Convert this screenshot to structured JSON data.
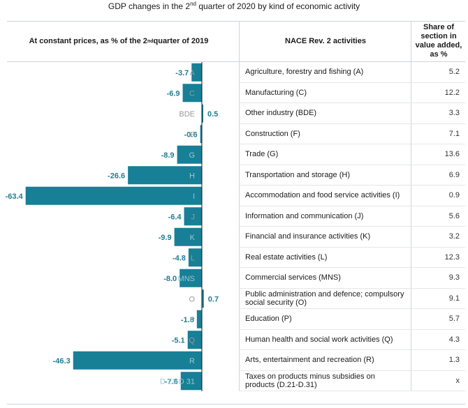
{
  "title": {
    "prefix": "GDP changes in the 2",
    "sup": "nd",
    "suffix": " quarter of 2020 by kind of economic activity"
  },
  "headers": {
    "left_prefix": "At constant prices, as % of the 2",
    "left_sup": "nd",
    "left_suffix": " quarter of 2019",
    "middle": "NACE Rev. 2 activities",
    "right": "Share of section in value added, as %"
  },
  "colors": {
    "bar": "#177f96",
    "value_label": "#1f7d93",
    "code_label_on_bar": "#9bc9d3",
    "code_label_off_bar": "#9a9a9a",
    "axis": "#1a1a1a"
  },
  "chart_data": {
    "type": "bar",
    "orientation": "horizontal",
    "xlim": [
      -63.4,
      12.0
    ],
    "grid": false,
    "legend": "none",
    "categories": [
      "A",
      "C",
      "BDE",
      "F",
      "G",
      "H",
      "I",
      "J",
      "K",
      "L",
      "MNS",
      "O",
      "P",
      "Q",
      "R",
      "D 21-D 31"
    ],
    "values": [
      -3.7,
      -6.9,
      0.5,
      -0.6,
      -8.9,
      -26.6,
      -63.4,
      -6.4,
      -9.9,
      -4.8,
      -8.0,
      0.7,
      -1.8,
      -5.1,
      -46.3,
      -7.6
    ],
    "value_labels": [
      "-3.7",
      "-6.9",
      "0.5",
      "-0.6",
      "-8.9",
      "-26.6",
      "-63.4",
      "-6.4",
      "-9.9",
      "-4.8",
      "-8.0",
      "0.7",
      "-1.8",
      "-5.1",
      "-46.3",
      "-7.6"
    ]
  },
  "rows": [
    {
      "activity": "Agriculture, forestry and fishing (A)",
      "share": "5.2"
    },
    {
      "activity": "Manufacturing (C)",
      "share": "12.2"
    },
    {
      "activity": "Other industry (BDE)",
      "share": "3.3"
    },
    {
      "activity": "Construction (F)",
      "share": "7.1"
    },
    {
      "activity": "Trade (G)",
      "share": "13.6"
    },
    {
      "activity": "Transportation and storage (H)",
      "share": "6.9"
    },
    {
      "activity": "Accommodation and food service activities (I)",
      "share": "0.9"
    },
    {
      "activity": "Information and communication (J)",
      "share": "5.6"
    },
    {
      "activity": "Financial and insurance activities (K)",
      "share": "3.2"
    },
    {
      "activity": "Real estate activities (L)",
      "share": "12.3"
    },
    {
      "activity": "Commercial services (MNS)",
      "share": "9.3"
    },
    {
      "activity": "Public administration and defence; compulsory social security (O)",
      "share": "9.1"
    },
    {
      "activity": "Education (P)",
      "share": "5.7"
    },
    {
      "activity": "Human health and social work activities (Q)",
      "share": "4.3"
    },
    {
      "activity": "Arts, entertainment and recreation (R)",
      "share": "1.3"
    },
    {
      "activity": "Taxes on products minus subsidies on products (D.21-D.31)",
      "share": "x"
    }
  ]
}
